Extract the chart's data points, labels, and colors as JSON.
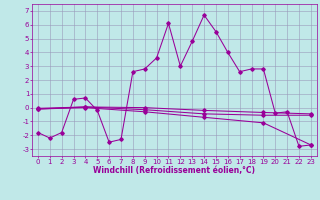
{
  "xlabel": "Windchill (Refroidissement éolien,°C)",
  "xlim": [
    -0.5,
    23.5
  ],
  "ylim": [
    -3.5,
    7.5
  ],
  "xticks": [
    0,
    1,
    2,
    3,
    4,
    5,
    6,
    7,
    8,
    9,
    10,
    11,
    12,
    13,
    14,
    15,
    16,
    17,
    18,
    19,
    20,
    21,
    22,
    23
  ],
  "yticks": [
    -3,
    -2,
    -1,
    0,
    1,
    2,
    3,
    4,
    5,
    6,
    7
  ],
  "bg_color": "#c0e8e8",
  "grid_color": "#9999bb",
  "line_color": "#990099",
  "line1_x": [
    0,
    1,
    2,
    3,
    4,
    5,
    6,
    7,
    8,
    9,
    10,
    11,
    12,
    13,
    14,
    15,
    16,
    17,
    18,
    19,
    20,
    21,
    22,
    23
  ],
  "line1_y": [
    -1.8,
    -2.2,
    -1.8,
    0.6,
    0.7,
    -0.2,
    -2.5,
    -2.3,
    2.6,
    2.8,
    3.6,
    6.1,
    3.0,
    4.8,
    6.7,
    5.5,
    4.0,
    2.6,
    2.8,
    2.8,
    -0.4,
    -0.3,
    -2.8,
    -2.7
  ],
  "line2_x": [
    0,
    4,
    9,
    14,
    19,
    23
  ],
  "line2_y": [
    -0.05,
    0.05,
    0.0,
    -0.2,
    -0.35,
    -0.45
  ],
  "line3_x": [
    0,
    4,
    9,
    14,
    19,
    23
  ],
  "line3_y": [
    -0.1,
    0.05,
    -0.15,
    -0.45,
    -0.55,
    -0.55
  ],
  "line4_x": [
    0,
    4,
    9,
    14,
    19,
    23
  ],
  "line4_y": [
    -0.1,
    0.0,
    -0.3,
    -0.7,
    -1.1,
    -2.7
  ],
  "font_size_label": 5.5,
  "font_size_tick": 5.0,
  "marker": "D",
  "marker_size": 1.8,
  "line_width": 0.75
}
